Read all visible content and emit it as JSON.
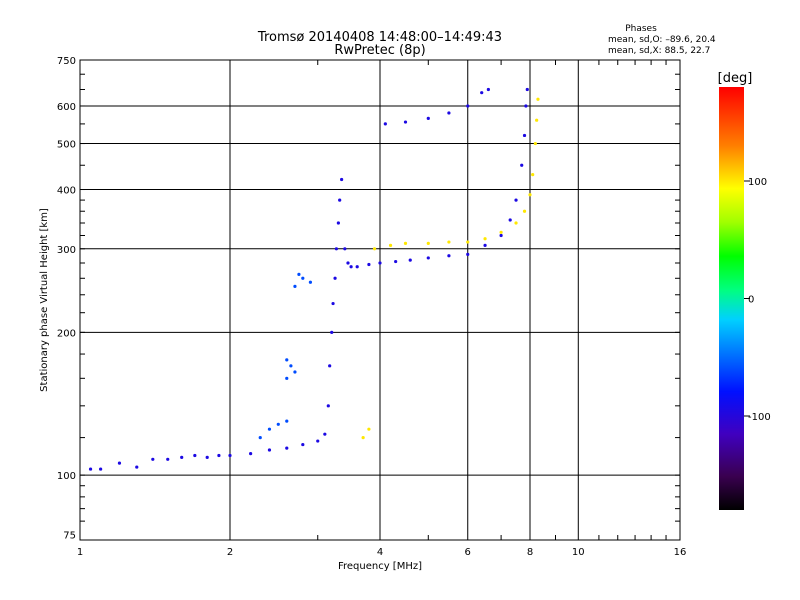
{
  "chart_data": {
    "type": "scatter",
    "title": "Tromsø 20140408 14:48:00–14:49:43",
    "subtitle": "RwPretec (8p)",
    "xlabel": "Frequency [MHz]",
    "ylabel": "Stationary phase Virtual Height [km]",
    "x_scale": "log",
    "y_scale": "log",
    "xlim": [
      1,
      16
    ],
    "ylim": [
      73,
      750
    ],
    "x_ticks": [
      1,
      2,
      4,
      6,
      8,
      10,
      16
    ],
    "x_tick_labels": [
      "1",
      "2",
      "4",
      "6",
      "8",
      "10",
      "16"
    ],
    "y_ticks": [
      75,
      100,
      200,
      300,
      400,
      500,
      600,
      750
    ],
    "y_tick_labels": [
      "75",
      "100",
      "200",
      "300",
      "400",
      "500",
      "600",
      "750"
    ],
    "grid": true,
    "phase_stats": {
      "title": "Phases",
      "line_o": "mean, sd,O: –89.6, 20.4",
      "line_x": "mean, sd,X:  88.5, 22.7"
    },
    "colorbar": {
      "label": "[deg]",
      "ticks": [
        100,
        0,
        -100
      ],
      "tick_labels": [
        "100",
        "0",
        "-100"
      ],
      "range": [
        -180,
        180
      ]
    },
    "series": [
      {
        "phase": -95,
        "points": [
          [
            1.05,
            103
          ],
          [
            1.1,
            103
          ],
          [
            1.2,
            106
          ],
          [
            1.3,
            104
          ],
          [
            1.4,
            108
          ],
          [
            1.5,
            108
          ],
          [
            1.6,
            109
          ],
          [
            1.7,
            110
          ],
          [
            1.8,
            109
          ],
          [
            1.9,
            110
          ],
          [
            2.0,
            110
          ],
          [
            2.2,
            111
          ],
          [
            2.4,
            113
          ],
          [
            2.6,
            114
          ],
          [
            2.8,
            116
          ],
          [
            3.0,
            118
          ],
          [
            3.1,
            122
          ],
          [
            3.15,
            140
          ],
          [
            3.17,
            170
          ],
          [
            3.2,
            200
          ],
          [
            3.22,
            230
          ],
          [
            3.25,
            260
          ],
          [
            3.27,
            300
          ],
          [
            3.3,
            340
          ],
          [
            3.32,
            380
          ],
          [
            3.35,
            420
          ],
          [
            3.4,
            300
          ],
          [
            3.45,
            280
          ],
          [
            3.5,
            275
          ],
          [
            3.6,
            275
          ],
          [
            3.8,
            278
          ],
          [
            4.0,
            280
          ],
          [
            4.3,
            282
          ],
          [
            4.6,
            284
          ],
          [
            5.0,
            287
          ],
          [
            5.5,
            290
          ],
          [
            6.0,
            292
          ],
          [
            6.5,
            305
          ],
          [
            7.0,
            320
          ],
          [
            7.3,
            345
          ],
          [
            7.5,
            380
          ],
          [
            7.7,
            450
          ],
          [
            7.8,
            520
          ],
          [
            7.85,
            600
          ],
          [
            7.9,
            650
          ],
          [
            4.1,
            550
          ],
          [
            4.5,
            555
          ],
          [
            5.0,
            565
          ],
          [
            5.5,
            580
          ],
          [
            6.0,
            600
          ],
          [
            6.4,
            640
          ],
          [
            6.6,
            650
          ]
        ]
      },
      {
        "phase": -60,
        "points": [
          [
            2.3,
            120
          ],
          [
            2.4,
            125
          ],
          [
            2.5,
            128
          ],
          [
            2.6,
            130
          ],
          [
            2.6,
            175
          ],
          [
            2.65,
            170
          ],
          [
            2.7,
            165
          ],
          [
            2.6,
            160
          ],
          [
            2.7,
            250
          ],
          [
            2.8,
            260
          ],
          [
            2.9,
            255
          ],
          [
            2.75,
            265
          ]
        ]
      },
      {
        "phase": 100,
        "points": [
          [
            3.9,
            300
          ],
          [
            4.2,
            305
          ],
          [
            4.5,
            308
          ],
          [
            5.0,
            308
          ],
          [
            5.5,
            310
          ],
          [
            6.0,
            310
          ],
          [
            6.5,
            315
          ],
          [
            7.0,
            325
          ],
          [
            7.5,
            340
          ],
          [
            7.8,
            360
          ],
          [
            8.0,
            390
          ],
          [
            8.1,
            430
          ],
          [
            8.2,
            500
          ],
          [
            8.25,
            560
          ],
          [
            8.3,
            620
          ],
          [
            3.7,
            120
          ],
          [
            3.8,
            125
          ]
        ]
      }
    ]
  }
}
